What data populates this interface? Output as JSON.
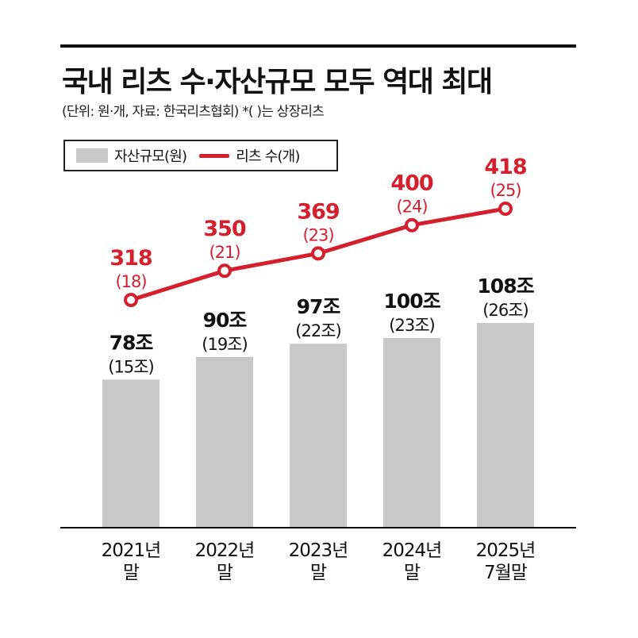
{
  "title": "국내 리츠 수·자산규모 모두 역대 최대",
  "subtitle": "(단위: 원·개, 자료: 한국리츠협회)  *(  )는 상장리츠",
  "colors": {
    "bar": "#c8c8ca",
    "line": "#d61f2c",
    "text": "#111111"
  },
  "legend": {
    "bar_label": "자산규모(원)",
    "line_label": "리츠 수(개)"
  },
  "chart_data": {
    "type": "bar+line",
    "categories": [
      "2021년\n말",
      "2022년\n말",
      "2023년\n말",
      "2024년\n말",
      "2025년\n7월말"
    ],
    "series": [
      {
        "name": "자산규모(원)",
        "type": "bar",
        "values": [
          78,
          90,
          97,
          100,
          108
        ],
        "labels": [
          "78조",
          "90조",
          "97조",
          "100조",
          "108조"
        ],
        "sublabels": [
          "(15조)",
          "(19조)",
          "(22조)",
          "(23조)",
          "(26조)"
        ],
        "listed_values": [
          15,
          19,
          22,
          23,
          26
        ]
      },
      {
        "name": "리츠 수(개)",
        "type": "line",
        "values": [
          318,
          350,
          369,
          400,
          418
        ],
        "labels": [
          "318",
          "350",
          "369",
          "400",
          "418"
        ],
        "sublabels": [
          "(18)",
          "(21)",
          "(23)",
          "(24)",
          "(25)"
        ],
        "listed_values": [
          18,
          21,
          23,
          24,
          25
        ]
      }
    ],
    "legend_position": "top-left",
    "grid": false
  }
}
